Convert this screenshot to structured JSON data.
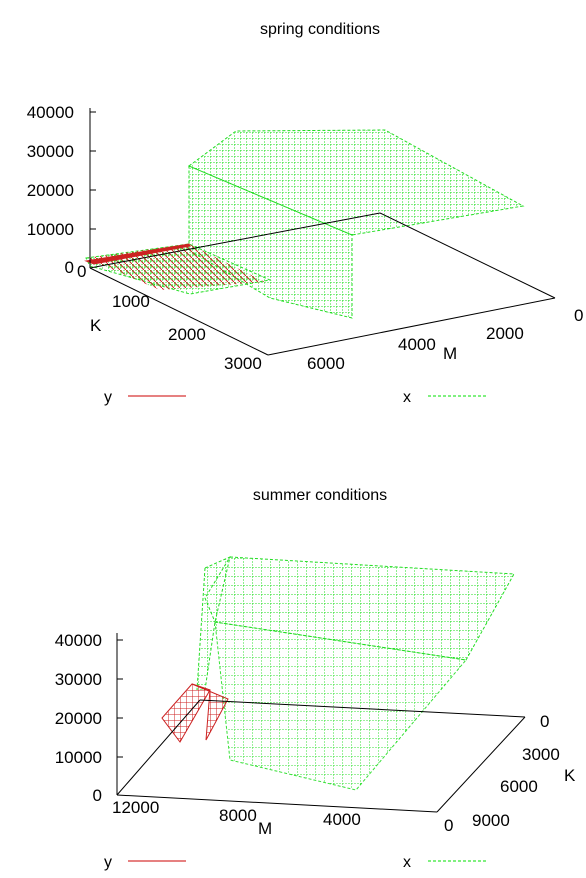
{
  "chart_data": [
    {
      "type": "surface",
      "title": "spring conditions",
      "xlabel": "M",
      "ylabel": "K",
      "zlabel": "",
      "M_range": [
        0,
        7000
      ],
      "K_range": [
        0,
        3000
      ],
      "z_range": [
        0,
        40000
      ],
      "z_ticks": [
        "0",
        "10000",
        "20000",
        "30000",
        "40000"
      ],
      "M_ticks": [
        "0",
        "2000",
        "4000",
        "6000"
      ],
      "K_ticks": [
        "0",
        "1000",
        "2000",
        "3000"
      ],
      "series": [
        {
          "name": "y",
          "color": "#cc0000",
          "style": "solid",
          "shape": "small sloped sheet near M=7000, K=0..1000, low z"
        },
        {
          "name": "x",
          "color": "#00e000",
          "style": "dashed",
          "shape": "plateau z=40000 for M<4500, wall, low sheet z~0 for M>4500"
        }
      ],
      "legend": "bottom"
    },
    {
      "type": "surface",
      "title": "summer conditions",
      "xlabel": "M",
      "ylabel": "K",
      "zlabel": "",
      "M_range": [
        0,
        13000
      ],
      "K_range": [
        0,
        10000
      ],
      "z_range": [
        0,
        40000
      ],
      "z_ticks": [
        "0",
        "10000",
        "20000",
        "30000",
        "40000"
      ],
      "M_ticks": [
        "12000",
        "8000",
        "4000",
        "0"
      ],
      "K_ticks": [
        "0",
        "3000",
        "6000",
        "9000"
      ],
      "series": [
        {
          "name": "y",
          "color": "#cc0000",
          "style": "solid",
          "shape": "small ridge near M~12000, low K, z~20000"
        },
        {
          "name": "x",
          "color": "#00e000",
          "style": "dashed",
          "shape": "plateau z~48000, steep wall to z~0 over low K"
        }
      ],
      "legend": "bottom"
    }
  ]
}
